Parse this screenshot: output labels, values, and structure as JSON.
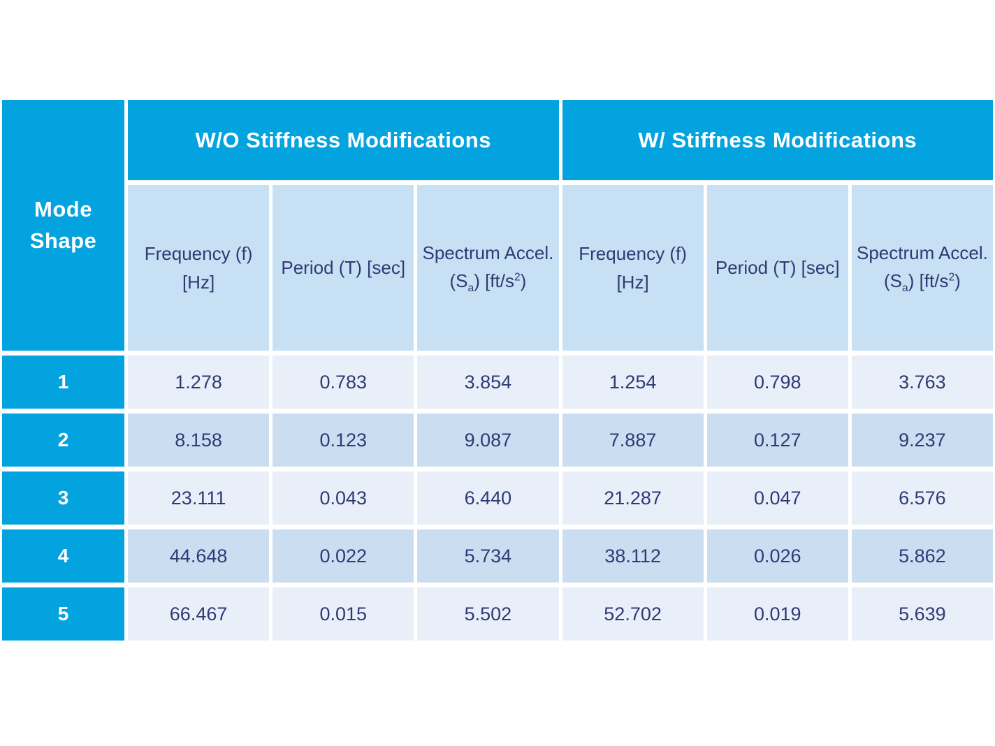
{
  "colors": {
    "accent_cyan": "#03A3DF",
    "subheader_bg": "#C8E0F4",
    "row_odd_bg": "#E9EFF8",
    "row_even_bg": "#CBDDF1",
    "text_navy": "#2E3A74"
  },
  "header_parts": {
    "corner_line1": "Mode",
    "corner_line2": "Shape",
    "freq_line1": "Frequency (f)",
    "freq_line2": "[Hz]",
    "period": "Period (T) [sec]",
    "spectrum_line1": "Spectrum Accel.",
    "spectrum_sa_open": "(S",
    "spectrum_sa_sub": "a",
    "spectrum_sa_mid": ") [ft/s",
    "spectrum_sa_sup": "2",
    "spectrum_sa_close": ")"
  },
  "chart_data": {
    "type": "table",
    "row_header": "Mode Shape",
    "column_groups": [
      {
        "label": "W/O Stiffness Modifications",
        "columns": [
          "Frequency (f) [Hz]",
          "Period (T) [sec]",
          "Spectrum Accel. (Sa) [ft/s2]"
        ]
      },
      {
        "label": "W/ Stiffness Modifications",
        "columns": [
          "Frequency (f) [Hz]",
          "Period (T) [sec]",
          "Spectrum Accel. (Sa) [ft/s2]"
        ]
      }
    ],
    "rows": [
      {
        "mode": "1",
        "values": [
          "1.278",
          "0.783",
          "3.854",
          "1.254",
          "0.798",
          "3.763"
        ]
      },
      {
        "mode": "2",
        "values": [
          "8.158",
          "0.123",
          "9.087",
          "7.887",
          "0.127",
          "9.237"
        ]
      },
      {
        "mode": "3",
        "values": [
          "23.111",
          "0.043",
          "6.440",
          "21.287",
          "0.047",
          "6.576"
        ]
      },
      {
        "mode": "4",
        "values": [
          "44.648",
          "0.022",
          "5.734",
          "38.112",
          "0.026",
          "5.862"
        ]
      },
      {
        "mode": "5",
        "values": [
          "66.467",
          "0.015",
          "5.502",
          "52.702",
          "0.019",
          "5.639"
        ]
      }
    ]
  }
}
